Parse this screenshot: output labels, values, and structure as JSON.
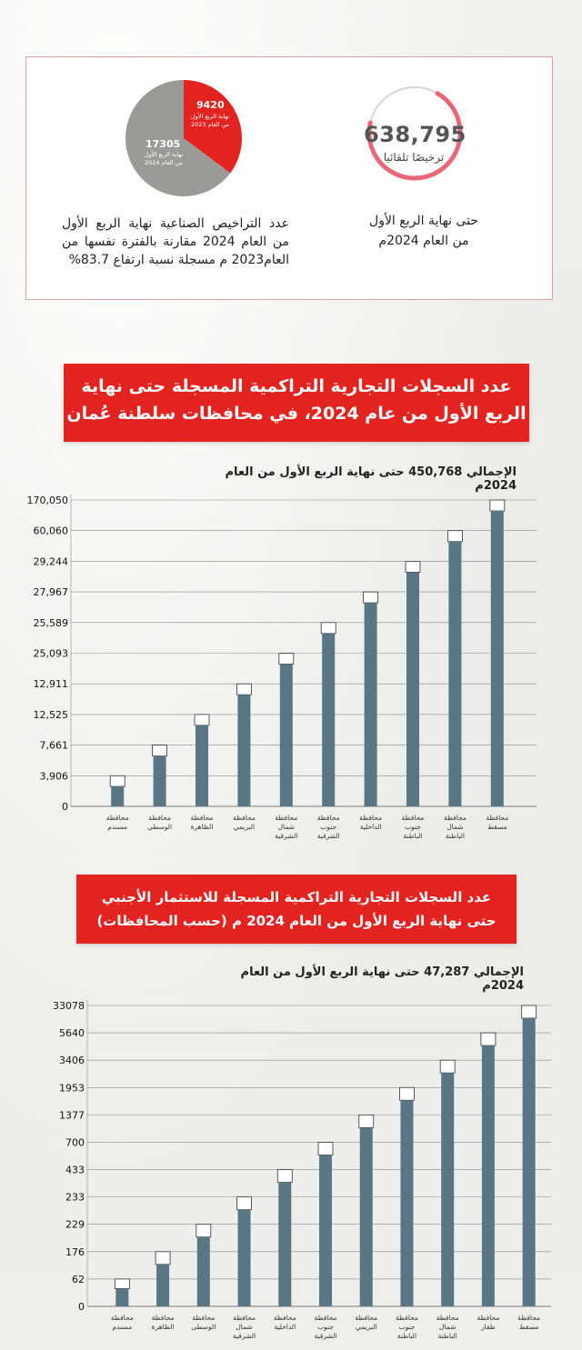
{
  "summary": {
    "licenses_value": "638,795",
    "licenses_unit": "ترخيصًا تلقائيا",
    "licenses_caption_line1": "حتى نهاية الربع الأول",
    "licenses_caption_line2": "من العام 2024م",
    "pie": {
      "slices": [
        {
          "value": 9420,
          "label_line1": "نهاية الربع الأول",
          "label_line2": "من العام 2023",
          "color": "#e32320"
        },
        {
          "value": 17305,
          "label_line1": "نهاية الربع الأول",
          "label_line2": "من العام 2024",
          "color": "#9a9a98"
        }
      ]
    },
    "pie_caption": "عدد التراخيص الصناعية نهاية الربع الأول من العام 2024 مقارنة بالفترة نفسها من العام2023 م مسجلة نسبة ارتفاع 83.7%"
  },
  "colors": {
    "accent": "#e32320",
    "bar": "#587684",
    "bar_cap": "#ffffff",
    "grid": "#8a8a8a"
  },
  "chart1": {
    "banner_line1": "عدد السجلات التجارية التراكمية المسجلة حتى نهاية",
    "banner_line2": "الربع الأول من عام 2024، في محافظات سلطنة عُمان",
    "total": "الإجمالي 450,768 حتى نهاية الربع الأول من العام 2024م"
  },
  "chart2": {
    "banner_line1": "عدد السجلات التجارية التراكمية المسجلة للاستثمار الأجنبي",
    "banner_line2": "حتى نهاية الربع الأول من العام 2024 م (حسب المحافظات)",
    "total": "الإجمالي 47,287 حتى نهاية الربع الأول من العام 2024م"
  },
  "chart_data": [
    {
      "type": "bar",
      "tick_labels": [
        "0",
        "3,906",
        "7,661",
        "12,525",
        "12,911",
        "25,093",
        "25,589",
        "27,967",
        "29,244",
        "60,060",
        "170,050"
      ],
      "categories": [
        [
          "محافظة",
          "مسندم"
        ],
        [
          "محافظة",
          "الوسطى"
        ],
        [
          "محافظة",
          "الظاهرة"
        ],
        [
          "محافظة",
          "البريمي"
        ],
        [
          "محافظة",
          "شمال",
          "الشرقية"
        ],
        [
          "محافظة",
          "جنوب",
          "الشرقية"
        ],
        [
          "محافظة",
          "الداخلية"
        ],
        [
          "محافظة",
          "جنوب",
          "الباطنة"
        ],
        [
          "محافظة",
          "شمال",
          "الباطنة"
        ],
        [
          "محافظة",
          "مسقط"
        ]
      ],
      "values": [
        3906,
        7661,
        12525,
        12911,
        25093,
        25589,
        27967,
        29244,
        60060,
        170050
      ],
      "grid": true
    },
    {
      "type": "bar",
      "tick_labels": [
        "0",
        "62",
        "176",
        "229",
        "233",
        "433",
        "700",
        "1377",
        "1953",
        "3406",
        "5640",
        "33078"
      ],
      "categories": [
        [
          "محافظة",
          "مسندم"
        ],
        [
          "محافظة",
          "الظاهرة"
        ],
        [
          "محافظة",
          "الوسطى"
        ],
        [
          "محافظة",
          "شمال",
          "الشرقية"
        ],
        [
          "محافظة",
          "الداخلية"
        ],
        [
          "محافظة",
          "جنوب",
          "الشرقية"
        ],
        [
          "محافظة",
          "البريمي"
        ],
        [
          "محافظة",
          "جنوب",
          "الباطنة"
        ],
        [
          "محافظة",
          "شمال",
          "الباطنة"
        ],
        [
          "محافظة",
          "ظفار"
        ],
        [
          "محافظة",
          "مسقط"
        ]
      ],
      "values": [
        62,
        176,
        229,
        233,
        433,
        700,
        1377,
        1953,
        3406,
        5640,
        33078
      ],
      "grid": true
    }
  ]
}
